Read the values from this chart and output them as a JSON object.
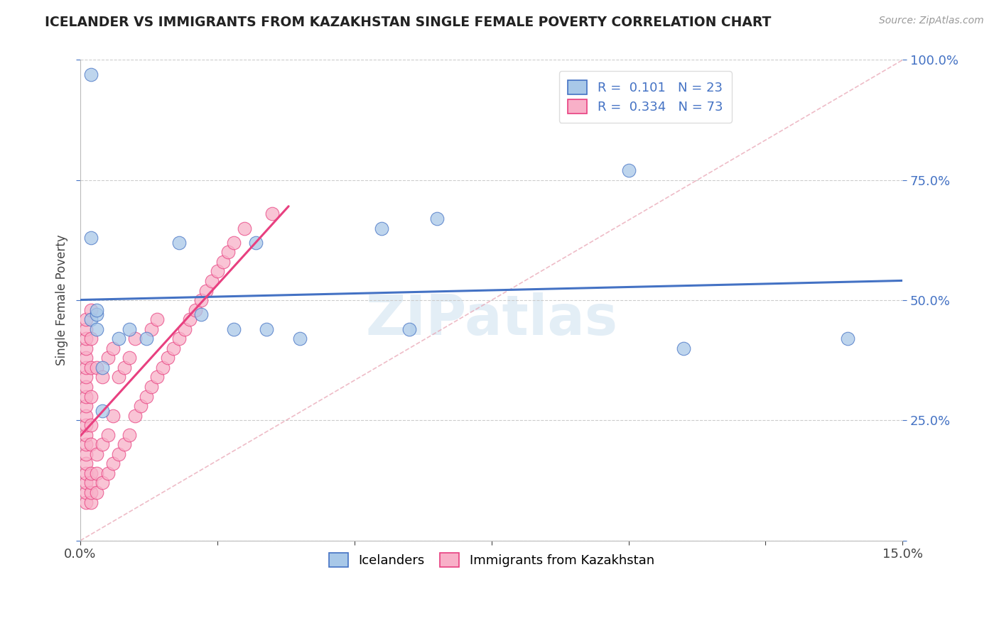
{
  "title": "ICELANDER VS IMMIGRANTS FROM KAZAKHSTAN SINGLE FEMALE POVERTY CORRELATION CHART",
  "source": "Source: ZipAtlas.com",
  "ylabel": "Single Female Poverty",
  "xmin": 0.0,
  "xmax": 0.15,
  "ymin": 0.0,
  "ymax": 1.0,
  "xticks": [
    0.0,
    0.025,
    0.05,
    0.075,
    0.1,
    0.125,
    0.15
  ],
  "yticks": [
    0.0,
    0.25,
    0.5,
    0.75,
    1.0
  ],
  "ytick_labels": [
    "",
    "25.0%",
    "50.0%",
    "75.0%",
    "100.0%"
  ],
  "xtick_labels": [
    "0.0%",
    "",
    "",
    "",
    "",
    "",
    "15.0%"
  ],
  "legend_icelanders": "Icelanders",
  "legend_kazakhstan": "Immigrants from Kazakhstan",
  "R_icelanders": 0.101,
  "N_icelanders": 23,
  "R_kazakhstan": 0.334,
  "N_kazakhstan": 73,
  "color_icelanders": "#a8c8e8",
  "color_kazakhstan": "#f8b0c8",
  "line_color_icelanders": "#4472c4",
  "line_color_kazakhstan": "#e84080",
  "background_color": "#ffffff",
  "icelanders_x": [
    0.002,
    0.002,
    0.002,
    0.003,
    0.003,
    0.003,
    0.004,
    0.004,
    0.007,
    0.009,
    0.012,
    0.018,
    0.022,
    0.028,
    0.032,
    0.034,
    0.04,
    0.055,
    0.06,
    0.065,
    0.1,
    0.11,
    0.14
  ],
  "icelanders_y": [
    0.97,
    0.63,
    0.46,
    0.44,
    0.47,
    0.48,
    0.27,
    0.36,
    0.42,
    0.44,
    0.42,
    0.62,
    0.47,
    0.44,
    0.62,
    0.44,
    0.42,
    0.65,
    0.44,
    0.67,
    0.77,
    0.4,
    0.42
  ],
  "kazakhstan_x": [
    0.001,
    0.001,
    0.001,
    0.001,
    0.001,
    0.001,
    0.001,
    0.001,
    0.001,
    0.001,
    0.001,
    0.001,
    0.001,
    0.001,
    0.001,
    0.001,
    0.001,
    0.001,
    0.001,
    0.001,
    0.002,
    0.002,
    0.002,
    0.002,
    0.002,
    0.002,
    0.002,
    0.002,
    0.002,
    0.002,
    0.003,
    0.003,
    0.003,
    0.003,
    0.004,
    0.004,
    0.004,
    0.005,
    0.005,
    0.005,
    0.006,
    0.006,
    0.006,
    0.007,
    0.007,
    0.008,
    0.008,
    0.009,
    0.009,
    0.01,
    0.01,
    0.011,
    0.012,
    0.013,
    0.013,
    0.014,
    0.014,
    0.015,
    0.016,
    0.017,
    0.018,
    0.019,
    0.02,
    0.021,
    0.022,
    0.023,
    0.024,
    0.025,
    0.026,
    0.027,
    0.028,
    0.03,
    0.035
  ],
  "kazakhstan_y": [
    0.08,
    0.1,
    0.12,
    0.14,
    0.16,
    0.18,
    0.2,
    0.22,
    0.24,
    0.26,
    0.28,
    0.3,
    0.32,
    0.34,
    0.36,
    0.38,
    0.4,
    0.42,
    0.44,
    0.46,
    0.08,
    0.1,
    0.12,
    0.14,
    0.2,
    0.24,
    0.3,
    0.36,
    0.42,
    0.48,
    0.1,
    0.14,
    0.18,
    0.36,
    0.12,
    0.2,
    0.34,
    0.14,
    0.22,
    0.38,
    0.16,
    0.26,
    0.4,
    0.18,
    0.34,
    0.2,
    0.36,
    0.22,
    0.38,
    0.26,
    0.42,
    0.28,
    0.3,
    0.32,
    0.44,
    0.34,
    0.46,
    0.36,
    0.38,
    0.4,
    0.42,
    0.44,
    0.46,
    0.48,
    0.5,
    0.52,
    0.54,
    0.56,
    0.58,
    0.6,
    0.62,
    0.65,
    0.68
  ]
}
